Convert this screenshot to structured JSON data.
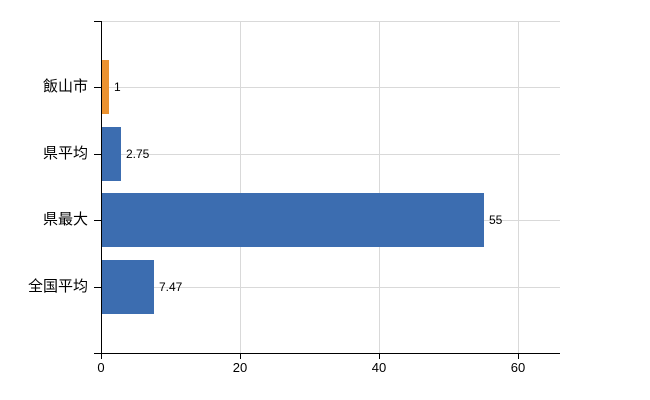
{
  "chart_data": {
    "type": "bar",
    "orientation": "horizontal",
    "title": "",
    "xlabel": "",
    "ylabel": "",
    "categories": [
      "飯山市",
      "県平均",
      "県最大",
      "全国平均"
    ],
    "values": [
      1,
      2.75,
      55,
      7.47
    ],
    "value_labels": [
      "1",
      "2.75",
      "55",
      "7.47"
    ],
    "series": [
      {
        "name": "value",
        "values": [
          1,
          2.75,
          55,
          7.47
        ]
      }
    ],
    "bar_colors": [
      "#eb9230",
      "#3c6db0",
      "#3c6db0",
      "#3c6db0"
    ],
    "x_tick_labels": [
      "0",
      "20",
      "40",
      "60"
    ],
    "x_tick_values": [
      0,
      20,
      40,
      60
    ],
    "xlim": [
      0,
      66
    ],
    "grid": true,
    "legend": false,
    "colors": {
      "grid": "#d9d9d9",
      "axis": "#000000",
      "text": "#000000",
      "background": "#ffffff",
      "accent_orange": "#eb9230",
      "accent_blue": "#3c6db0"
    }
  }
}
